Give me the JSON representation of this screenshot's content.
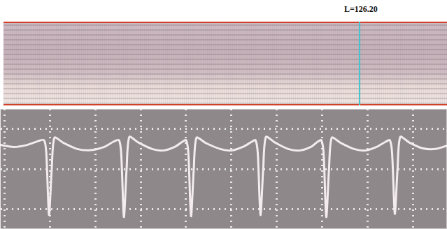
{
  "marker_label": "L=126.20",
  "chart_data": {
    "type": "line",
    "x": [
      -0.1,
      0.2,
      0.5,
      0.75,
      0.87,
      0.92,
      0.98,
      1.04,
      1.1,
      1.3,
      1.6,
      1.9,
      2.2,
      2.4,
      2.52,
      2.57,
      2.63,
      2.69,
      2.75,
      2.95,
      3.25,
      3.5,
      3.75,
      3.92,
      4.0,
      4.05,
      4.11,
      4.17,
      4.23,
      4.43,
      4.75,
      5.0,
      5.25,
      5.45,
      5.53,
      5.58,
      5.64,
      5.7,
      5.76,
      5.96,
      6.25,
      6.5,
      6.75,
      6.9,
      6.98,
      7.03,
      7.09,
      7.15,
      7.21,
      7.41,
      7.7,
      7.95,
      8.2,
      8.4,
      8.49,
      8.54,
      8.6,
      8.66,
      8.72,
      8.92,
      9.2,
      9.5,
      9.75
    ],
    "values": [
      1.6,
      1.55,
      1.6,
      1.7,
      1.72,
      1.4,
      -0.15,
      1.0,
      1.78,
      1.65,
      1.5,
      1.47,
      1.55,
      1.68,
      1.72,
      1.4,
      -0.2,
      1.0,
      1.8,
      1.66,
      1.5,
      1.46,
      1.55,
      1.68,
      1.72,
      1.4,
      -0.18,
      1.0,
      1.78,
      1.65,
      1.5,
      1.46,
      1.55,
      1.68,
      1.72,
      1.4,
      -0.15,
      1.0,
      1.8,
      1.66,
      1.5,
      1.46,
      1.55,
      1.68,
      1.72,
      1.4,
      -0.2,
      1.0,
      1.78,
      1.65,
      1.5,
      1.46,
      1.55,
      1.68,
      1.72,
      1.4,
      -0.12,
      1.0,
      1.8,
      1.66,
      1.52,
      1.5,
      1.58
    ],
    "color": "#f3ebee",
    "xlim": [
      -0.1,
      9.75
    ],
    "ylim": [
      -0.5,
      2.5
    ],
    "xticks": [
      0,
      1,
      2,
      3,
      4,
      5,
      6,
      7,
      8,
      9
    ],
    "yticks": [
      0,
      1,
      2
    ],
    "grid": true,
    "tick_labels": false
  }
}
